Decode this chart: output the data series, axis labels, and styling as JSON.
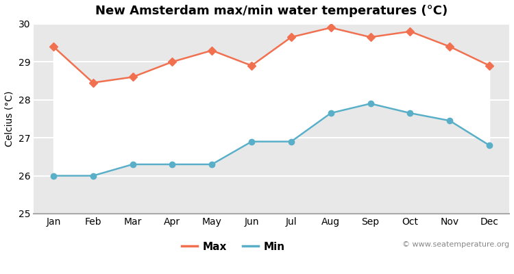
{
  "title": "New Amsterdam max/min water temperatures (°C)",
  "ylabel": "Celcius (°C)",
  "months": [
    "Jan",
    "Feb",
    "Mar",
    "Apr",
    "May",
    "Jun",
    "Jul",
    "Aug",
    "Sep",
    "Oct",
    "Nov",
    "Dec"
  ],
  "max_temps": [
    29.4,
    28.45,
    28.6,
    29.0,
    29.3,
    28.9,
    29.65,
    29.9,
    29.65,
    29.8,
    29.4,
    28.9
  ],
  "min_temps": [
    26.0,
    26.0,
    26.3,
    26.3,
    26.3,
    26.9,
    26.9,
    27.65,
    27.9,
    27.65,
    27.45,
    26.8
  ],
  "max_color": "#f07050",
  "min_color": "#5aafc8",
  "figure_bg_color": "#ffffff",
  "plot_bg_color": "#e8e8e8",
  "grid_color": "#ffffff",
  "spine_color": "#aaaaaa",
  "ylim": [
    25,
    30
  ],
  "yticks": [
    25,
    26,
    27,
    28,
    29,
    30
  ],
  "watermark": "© www.seatemperature.org",
  "title_fontsize": 13,
  "axis_label_fontsize": 10,
  "tick_fontsize": 10,
  "legend_fontsize": 11,
  "watermark_fontsize": 8
}
